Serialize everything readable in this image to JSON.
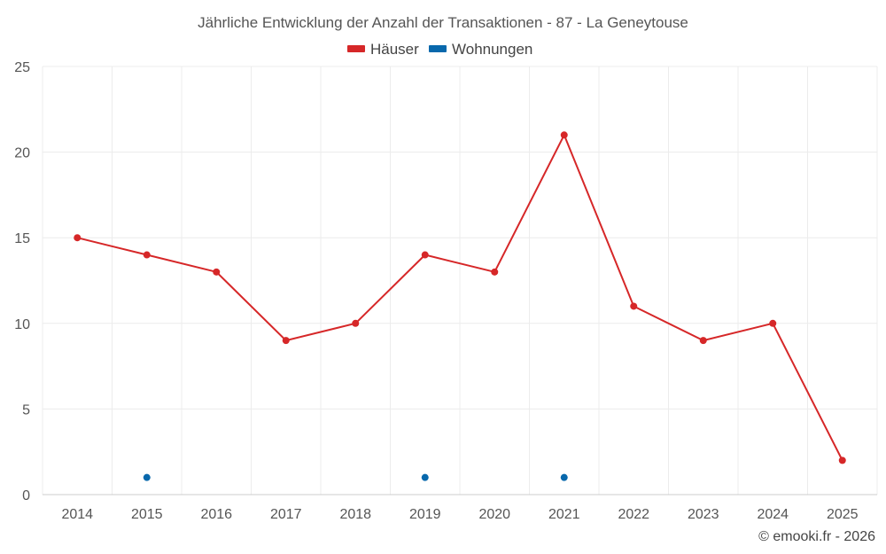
{
  "chart_data": {
    "type": "line",
    "title": "Jährliche Entwicklung der Anzahl der Transaktionen - 87 - La Geneytouse",
    "categories": [
      "2014",
      "2015",
      "2016",
      "2017",
      "2018",
      "2019",
      "2020",
      "2021",
      "2022",
      "2023",
      "2024",
      "2025"
    ],
    "ylim": [
      0,
      25
    ],
    "yticks": [
      0,
      5,
      10,
      15,
      20,
      25
    ],
    "grid": true,
    "legend_position": "top-center",
    "series": [
      {
        "name": "Häuser",
        "color": "#d62728",
        "line": true,
        "values": [
          15,
          14,
          13,
          9,
          10,
          14,
          13,
          21,
          11,
          9,
          10,
          2
        ]
      },
      {
        "name": "Wohnungen",
        "color": "#0868ac",
        "line": false,
        "values": [
          null,
          1,
          null,
          null,
          null,
          1,
          null,
          1,
          null,
          null,
          null,
          null
        ]
      }
    ]
  },
  "copyright": "© emooki.fr - 2026"
}
